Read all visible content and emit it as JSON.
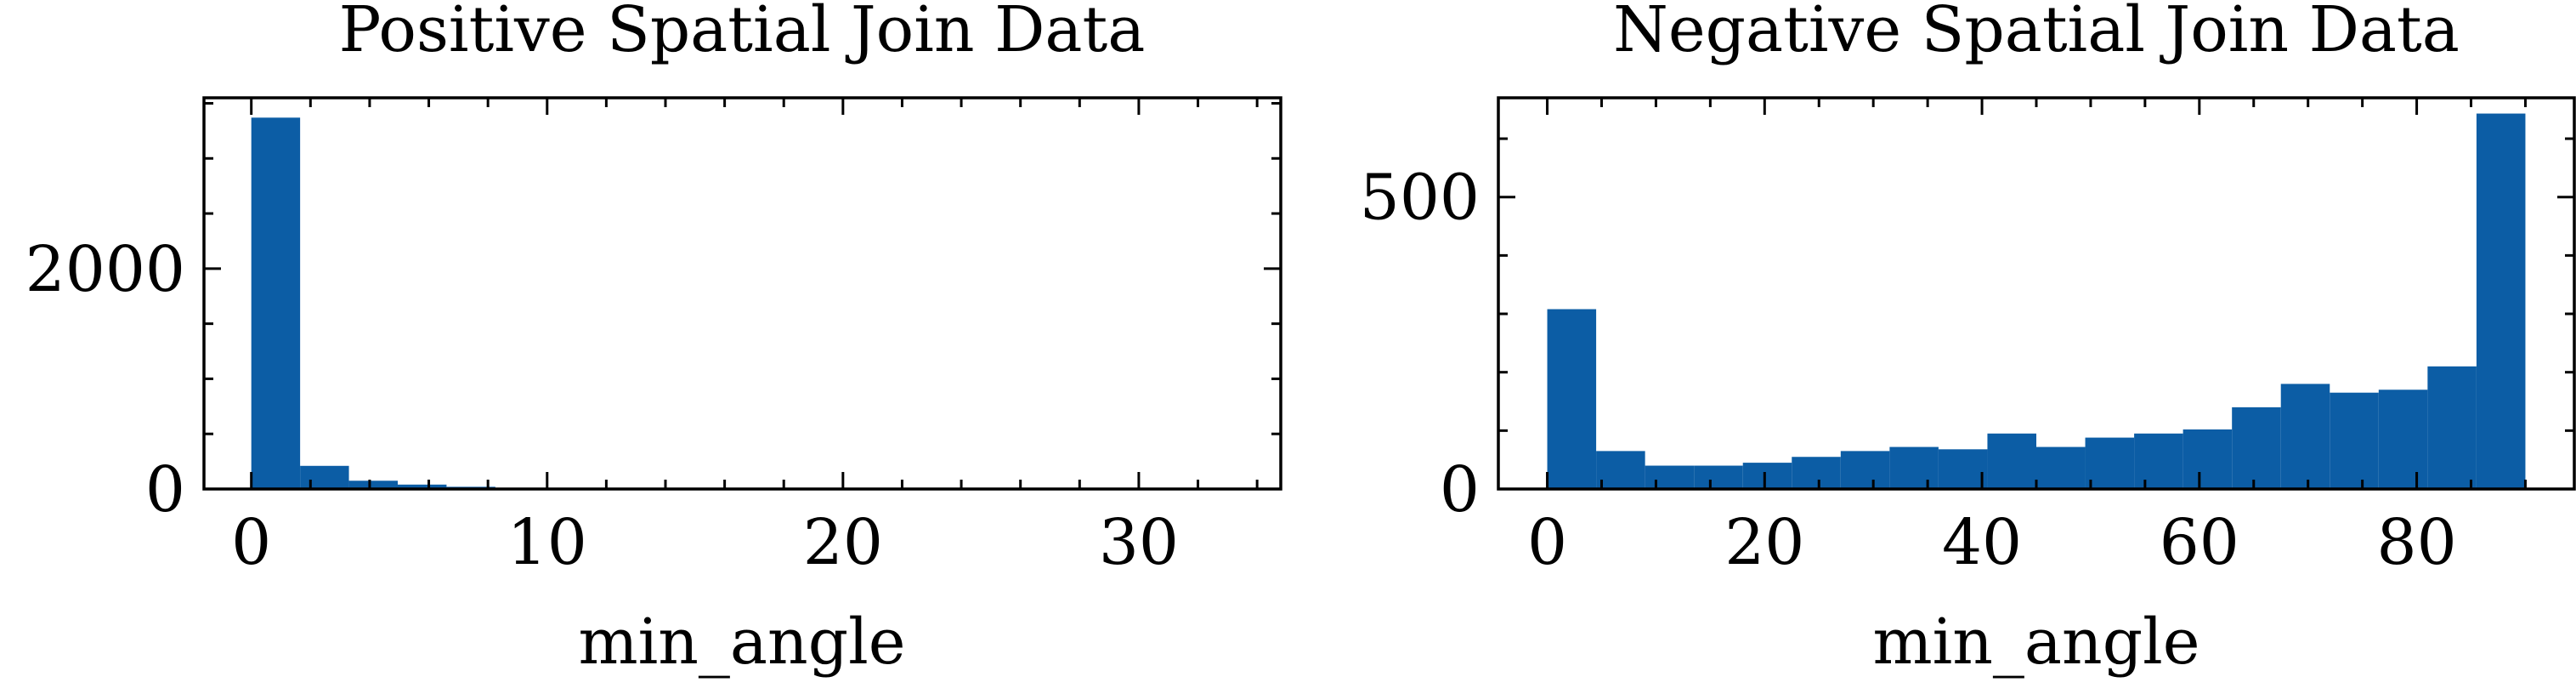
{
  "chart_data": [
    {
      "type": "bar",
      "title": "Positive Spatial Join Data",
      "xlabel": "min_angle",
      "ylabel": "",
      "xlim": [
        -1.6,
        34.8
      ],
      "ylim": [
        0,
        3550
      ],
      "xticks": [
        0,
        10,
        20,
        30
      ],
      "xtick_labels": [
        "0",
        "10",
        "20",
        "30"
      ],
      "xminor_step": 2,
      "yticks": [
        0,
        2000
      ],
      "ytick_labels": [
        "0",
        "2000"
      ],
      "yminor_step": 500,
      "bin_width": 1.65,
      "bins_start": [
        0,
        1.65,
        3.3,
        4.95,
        6.6,
        8.25
      ],
      "values": [
        3370,
        210,
        75,
        40,
        20,
        6
      ],
      "color": "#0C5DA5"
    },
    {
      "type": "bar",
      "title": "Negative Spatial Join Data",
      "xlabel": "min_angle",
      "ylabel": "",
      "xlim": [
        -4.5,
        94.5
      ],
      "ylim": [
        0,
        670
      ],
      "xticks": [
        0,
        20,
        40,
        60,
        80
      ],
      "xtick_labels": [
        "0",
        "20",
        "40",
        "60",
        "80"
      ],
      "xminor_step": 5,
      "yticks": [
        0,
        500
      ],
      "ytick_labels": [
        "0",
        "500"
      ],
      "yminor_step": 100,
      "bin_width": 4.5,
      "bins_start": [
        0,
        4.5,
        9,
        13.5,
        18,
        22.5,
        27,
        31.5,
        36,
        40.5,
        45,
        49.5,
        54,
        58.5,
        63,
        67.5,
        72,
        76.5,
        81,
        85.5
      ],
      "values": [
        308,
        65,
        40,
        40,
        45,
        55,
        65,
        72,
        68,
        95,
        72,
        88,
        95,
        102,
        140,
        180,
        165,
        170,
        210,
        643
      ],
      "color": "#0C5DA5"
    }
  ]
}
